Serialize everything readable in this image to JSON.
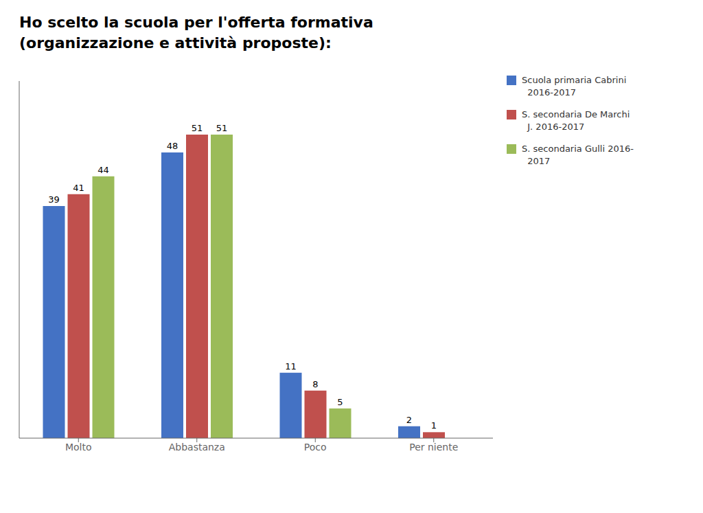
{
  "chart_data": {
    "type": "bar",
    "title": "Ho scelto la scuola per l'offerta formativa\n(organizzazione e attività proposte):",
    "categories": [
      "Molto",
      "Abbastanza",
      "Poco",
      "Per niente"
    ],
    "series": [
      {
        "name": "Scuola primaria Cabrini\n  2016-2017",
        "color": "#4472C4",
        "values": [
          39,
          48,
          11,
          2
        ]
      },
      {
        "name": "S. secondaria De Marchi\n  J. 2016-2017",
        "color": "#C0504D",
        "values": [
          41,
          51,
          8,
          1
        ]
      },
      {
        "name": "S. secondaria Gulli 2016-\n  2017",
        "color": "#9BBB59",
        "values": [
          44,
          51,
          5,
          0
        ]
      }
    ],
    "ylim": [
      0,
      60
    ],
    "data_labels": true,
    "tick_labels": "x",
    "legend": "upper right",
    "grid": false
  }
}
